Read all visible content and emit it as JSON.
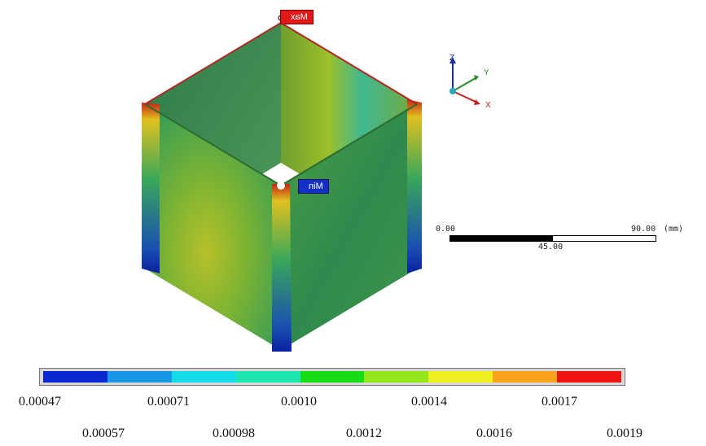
{
  "markers": {
    "max_label": "Max",
    "min_label": "Min"
  },
  "triad": {
    "z": "Z",
    "y": "Y",
    "x": "X"
  },
  "scale_bar": {
    "start": "0.00",
    "mid": "45.00",
    "end": "90.00",
    "unit": "(mm)"
  },
  "legend": {
    "colors": [
      "#0a28d2",
      "#1a96e6",
      "#14dceb",
      "#1ee6b0",
      "#16dc16",
      "#96e61e",
      "#f0f01e",
      "#fba31a",
      "#f01414"
    ],
    "upper_ticks": [
      "0.00047",
      "0.00071",
      "0.0010",
      "0.0014",
      "0.0017"
    ],
    "lower_ticks": [
      "0.00057",
      "0.00098",
      "0.0012",
      "0.0016",
      "0.0019"
    ]
  }
}
